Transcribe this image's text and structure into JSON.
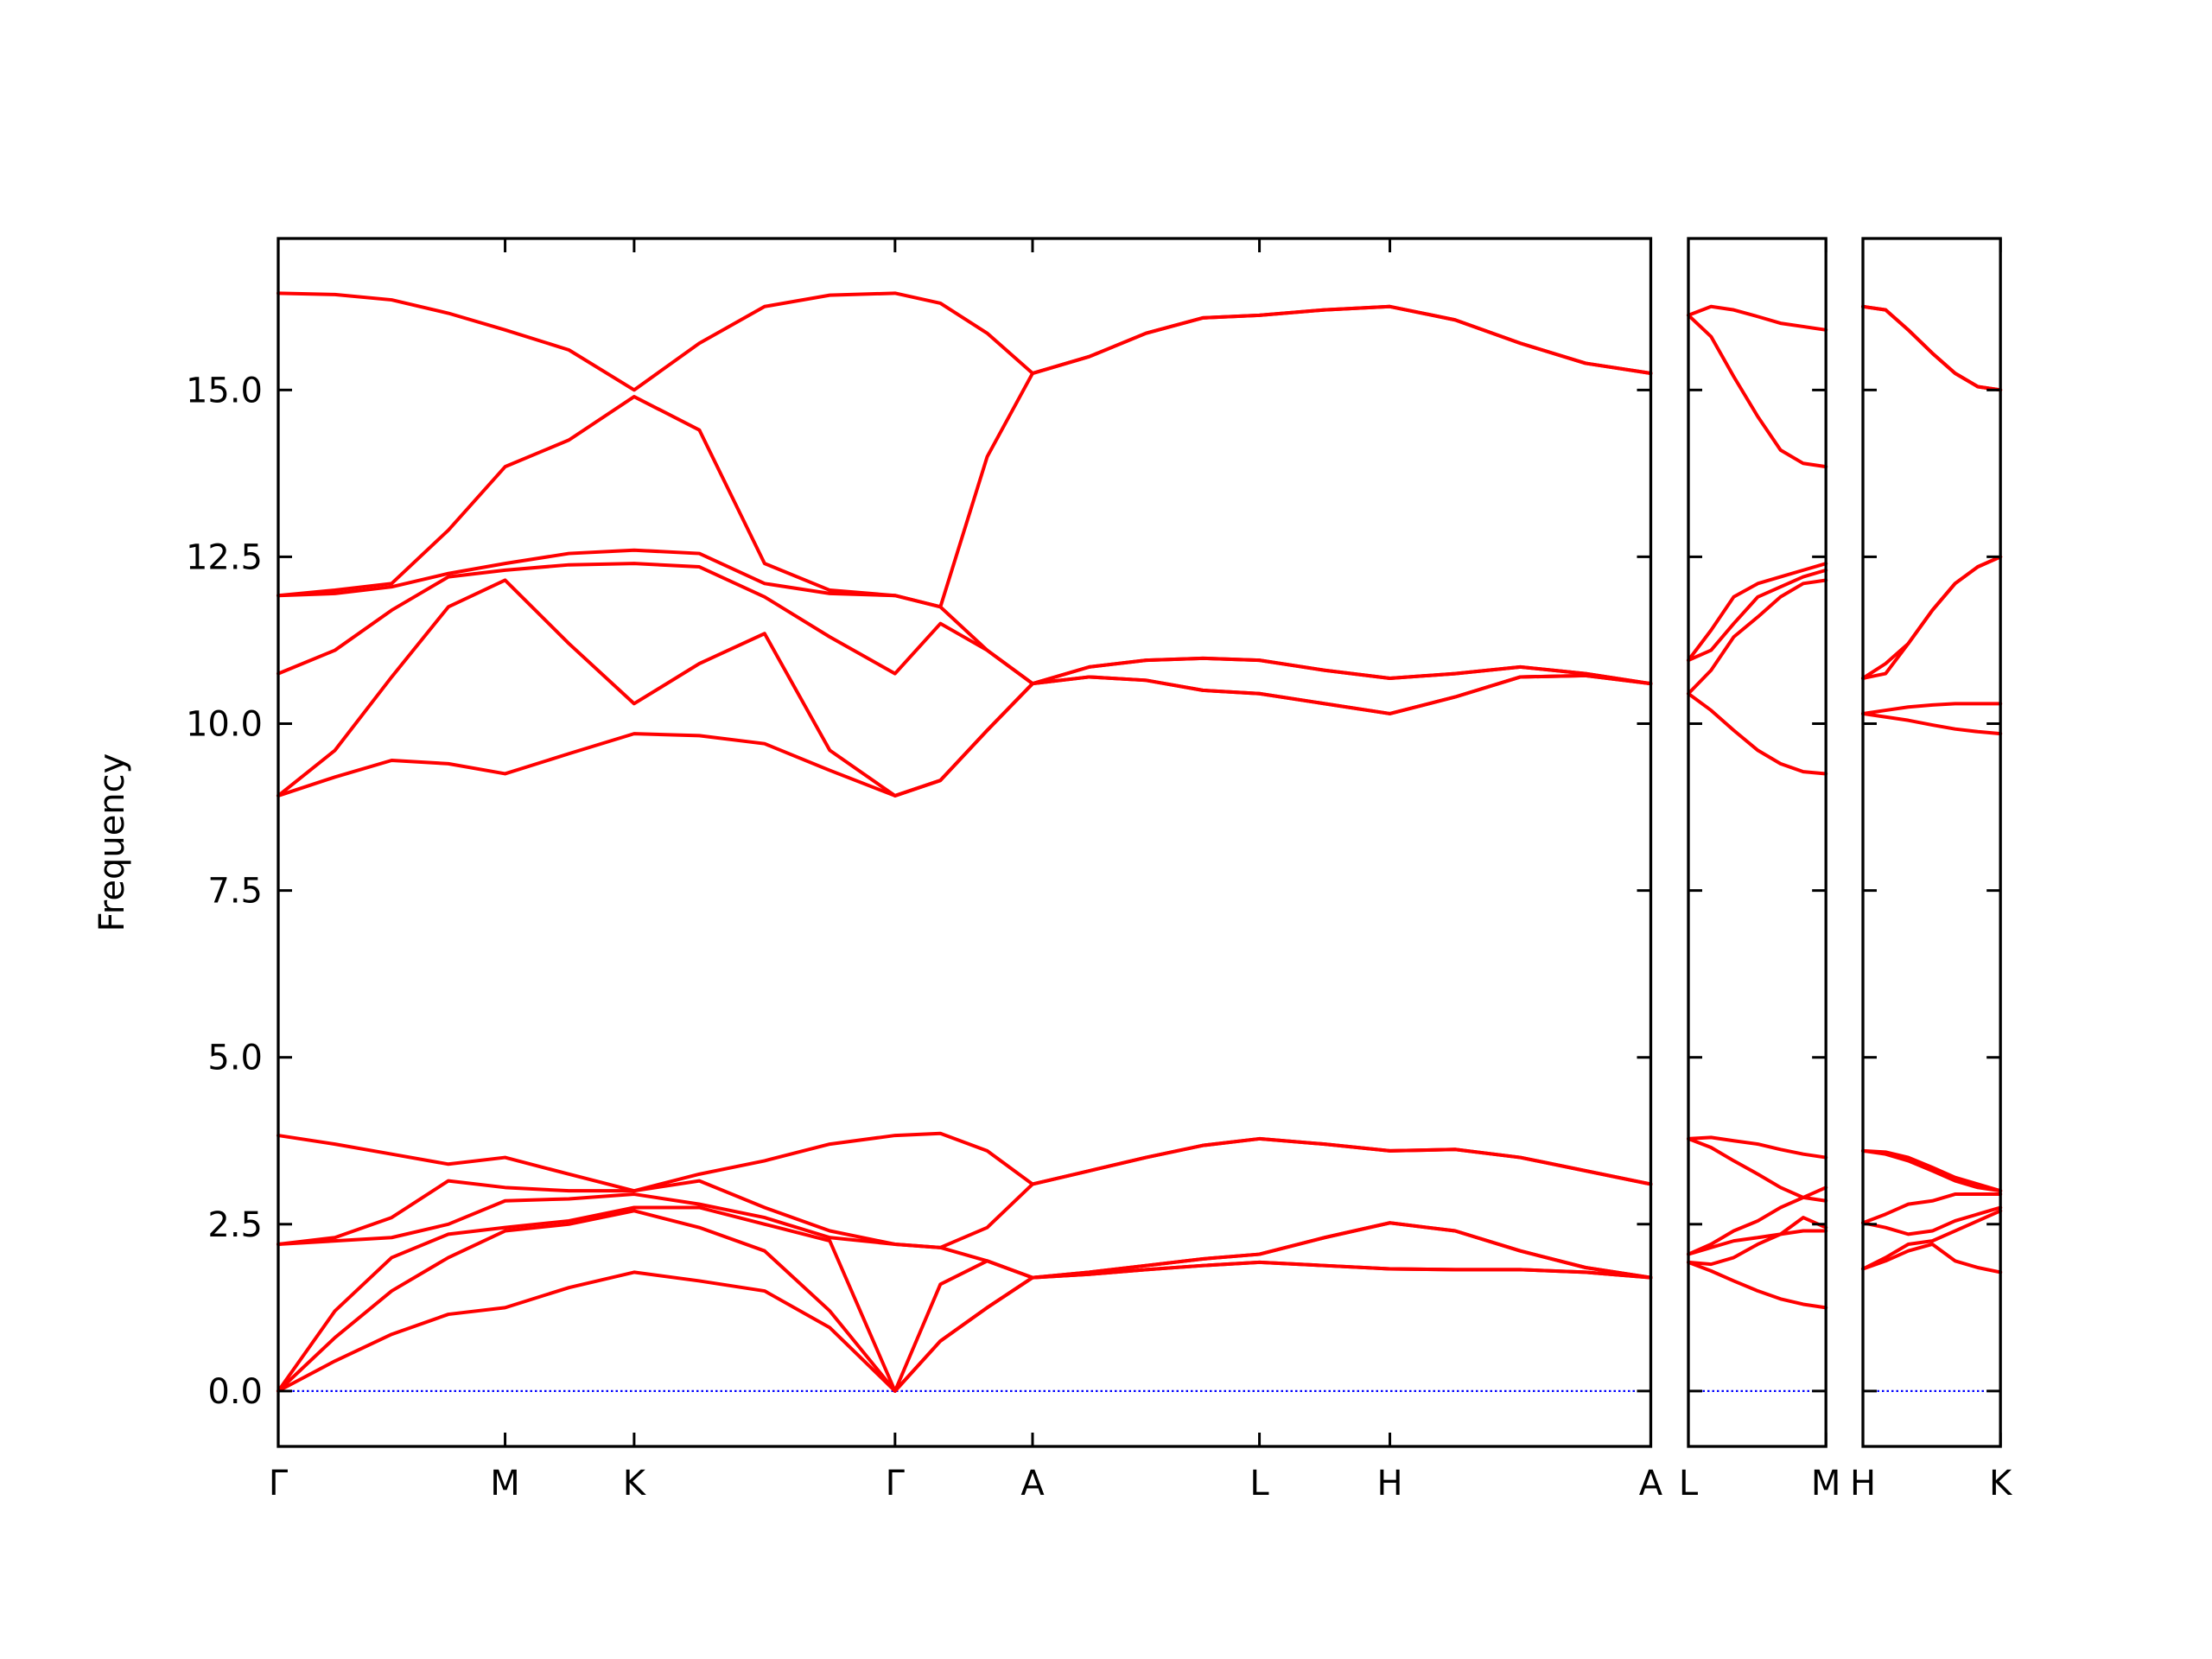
{
  "chart_data": [
    {
      "type": "line",
      "ylabel": "Frequency",
      "color": "#ff0000",
      "ylim": [
        -0.83,
        17.27
      ],
      "yticks": [
        {
          "value": 0,
          "label": "0.0"
        },
        2.5,
        {
          "value": 5,
          "label": "5.0"
        },
        7.5,
        {
          "value": 10,
          "label": "10.0"
        },
        12.5,
        {
          "value": 15,
          "label": "15.0"
        }
      ],
      "ytick_labels": true,
      "xlim": [
        0,
        9.68
      ],
      "xticks": [
        {
          "value": 0,
          "label": "Γ"
        },
        {
          "value": 1.6,
          "label": "M"
        },
        {
          "value": 2.51,
          "label": "K"
        },
        {
          "value": 4.35,
          "label": "Γ"
        },
        {
          "value": 5.32,
          "label": "A"
        },
        {
          "value": 6.92,
          "label": "L"
        },
        {
          "value": 7.84,
          "label": "H"
        },
        {
          "value": 9.68,
          "label": "A"
        }
      ],
      "reference_line": {
        "y": 0,
        "color": "#0000ff",
        "style": "dotted"
      },
      "x": [
        0,
        0.4,
        0.8,
        1.2,
        1.6,
        2.05,
        2.51,
        2.97,
        3.43,
        3.89,
        4.35,
        4.67,
        5.0,
        5.32,
        5.72,
        6.12,
        6.52,
        6.92,
        7.38,
        7.84,
        8.3,
        8.76,
        9.22,
        9.68
      ],
      "series": [
        {
          "values": [
            0,
            0.45,
            0.85,
            1.15,
            1.25,
            1.55,
            1.78,
            1.65,
            1.5,
            0.95,
            0,
            0.75,
            1.25,
            1.7,
            1.75,
            1.82,
            1.88,
            1.93,
            1.88,
            1.83,
            1.82,
            1.82,
            1.78,
            1.7
          ]
        },
        {
          "values": [
            0,
            0.8,
            1.5,
            2.0,
            2.4,
            2.5,
            2.7,
            2.45,
            2.1,
            1.2,
            0,
            0.75,
            1.25,
            1.7,
            1.75,
            1.82,
            1.88,
            1.93,
            1.88,
            1.83,
            1.82,
            1.82,
            1.78,
            1.7
          ]
        },
        {
          "values": [
            0,
            1.2,
            2.0,
            2.35,
            2.45,
            2.55,
            2.75,
            2.75,
            2.5,
            2.25,
            0,
            1.6,
            1.95,
            1.7,
            1.78,
            1.88,
            1.98,
            2.05,
            2.3,
            2.52,
            2.4,
            2.1,
            1.85,
            1.7
          ]
        },
        {
          "values": [
            2.2,
            2.25,
            2.3,
            2.5,
            2.85,
            2.88,
            2.95,
            2.8,
            2.6,
            2.3,
            2.2,
            2.15,
            1.95,
            1.7,
            1.78,
            1.88,
            1.98,
            2.05,
            2.3,
            2.52,
            2.4,
            2.1,
            1.85,
            1.7
          ]
        },
        {
          "values": [
            2.2,
            2.3,
            2.6,
            3.15,
            3.05,
            3.0,
            3.0,
            3.15,
            2.75,
            2.4,
            2.2,
            2.15,
            2.45,
            3.1,
            3.3,
            3.5,
            3.68,
            3.78,
            3.7,
            3.6,
            3.62,
            3.5,
            3.3,
            3.1
          ]
        },
        {
          "values": [
            3.83,
            3.7,
            3.55,
            3.4,
            3.5,
            3.25,
            3.0,
            3.25,
            3.45,
            3.7,
            3.83,
            3.86,
            3.6,
            3.1,
            3.3,
            3.5,
            3.68,
            3.78,
            3.7,
            3.6,
            3.62,
            3.5,
            3.3,
            3.1
          ]
        },
        {
          "values": [
            8.92,
            9.2,
            9.45,
            9.4,
            9.25,
            9.55,
            9.85,
            9.82,
            9.7,
            9.3,
            8.92,
            9.15,
            9.9,
            10.6,
            10.7,
            10.65,
            10.5,
            10.45,
            10.3,
            10.15,
            10.4,
            10.7,
            10.72,
            10.6
          ]
        },
        {
          "values": [
            8.92,
            9.6,
            10.7,
            11.75,
            12.15,
            11.2,
            10.3,
            10.9,
            11.35,
            9.6,
            8.92,
            9.15,
            9.9,
            10.6,
            10.7,
            10.65,
            10.5,
            10.45,
            10.3,
            10.15,
            10.4,
            10.7,
            10.72,
            10.6
          ]
        },
        {
          "values": [
            10.75,
            11.1,
            11.7,
            12.2,
            12.3,
            12.38,
            12.4,
            12.35,
            11.9,
            11.3,
            10.75,
            11.5,
            11.1,
            10.6,
            10.85,
            10.95,
            10.98,
            10.95,
            10.8,
            10.68,
            10.75,
            10.85,
            10.75,
            10.6
          ]
        },
        {
          "values": [
            11.92,
            11.95,
            12.05,
            12.25,
            12.4,
            12.55,
            12.6,
            12.55,
            12.1,
            11.95,
            11.92,
            11.75,
            11.1,
            10.6,
            10.85,
            10.95,
            10.98,
            10.95,
            10.8,
            10.68,
            10.75,
            10.85,
            10.75,
            10.6
          ]
        },
        {
          "values": [
            11.92,
            12.0,
            12.1,
            12.9,
            13.85,
            14.25,
            14.9,
            14.4,
            12.4,
            12.0,
            11.92,
            11.75,
            14.0,
            15.25,
            15.5,
            15.85,
            16.08,
            16.12,
            16.2,
            16.25,
            16.05,
            15.7,
            15.4,
            15.25
          ]
        },
        {
          "values": [
            16.45,
            16.43,
            16.35,
            16.15,
            15.9,
            15.6,
            15.0,
            15.7,
            16.25,
            16.42,
            16.45,
            16.3,
            15.85,
            15.25,
            15.5,
            15.85,
            16.08,
            16.12,
            16.2,
            16.25,
            16.05,
            15.7,
            15.4,
            15.25
          ]
        }
      ]
    },
    {
      "type": "line",
      "color": "#ff0000",
      "ylim": [
        -0.83,
        17.27
      ],
      "yticks": [
        0,
        2.5,
        5,
        7.5,
        10,
        12.5,
        15
      ],
      "ytick_labels": false,
      "xlim": [
        0,
        0.97
      ],
      "xticks": [
        {
          "value": 0,
          "label": "L"
        },
        {
          "value": 0.97,
          "label": "M"
        }
      ],
      "reference_line": {
        "y": 0,
        "color": "#0000ff",
        "style": "dotted"
      },
      "x": [
        0,
        0.16,
        0.32,
        0.49,
        0.65,
        0.81,
        0.97
      ],
      "series": [
        {
          "values": [
            1.93,
            1.8,
            1.65,
            1.5,
            1.38,
            1.3,
            1.25
          ]
        },
        {
          "values": [
            1.93,
            1.9,
            2.0,
            2.2,
            2.35,
            2.4,
            2.4
          ]
        },
        {
          "values": [
            2.05,
            2.15,
            2.25,
            2.3,
            2.35,
            2.6,
            2.45
          ]
        },
        {
          "values": [
            2.05,
            2.2,
            2.4,
            2.55,
            2.75,
            2.9,
            2.85
          ]
        },
        {
          "values": [
            3.78,
            3.65,
            3.45,
            3.25,
            3.05,
            2.9,
            3.05
          ]
        },
        {
          "values": [
            3.78,
            3.8,
            3.75,
            3.7,
            3.62,
            3.55,
            3.5
          ]
        },
        {
          "values": [
            10.45,
            10.2,
            9.9,
            9.6,
            9.4,
            9.28,
            9.25
          ]
        },
        {
          "values": [
            10.45,
            10.8,
            11.3,
            11.6,
            11.9,
            12.1,
            12.15
          ]
        },
        {
          "values": [
            10.95,
            11.1,
            11.5,
            11.9,
            12.05,
            12.2,
            12.3
          ]
        },
        {
          "values": [
            10.95,
            11.4,
            11.9,
            12.1,
            12.2,
            12.3,
            12.4
          ]
        },
        {
          "values": [
            16.12,
            15.8,
            15.2,
            14.6,
            14.1,
            13.9,
            13.85
          ]
        },
        {
          "values": [
            16.12,
            16.25,
            16.2,
            16.1,
            16.0,
            15.95,
            15.9
          ]
        }
      ]
    },
    {
      "type": "line",
      "color": "#ff0000",
      "ylim": [
        -0.83,
        17.27
      ],
      "yticks": [
        0,
        2.5,
        5,
        7.5,
        10,
        12.5,
        15
      ],
      "ytick_labels": false,
      "xlim": [
        0,
        0.97
      ],
      "xticks": [
        {
          "value": 0,
          "label": "H"
        },
        {
          "value": 0.97,
          "label": "K"
        }
      ],
      "reference_line": {
        "y": 0,
        "color": "#0000ff",
        "style": "dotted"
      },
      "x": [
        0,
        0.16,
        0.32,
        0.49,
        0.65,
        0.81,
        0.97
      ],
      "series": [
        {
          "values": [
            1.83,
            1.95,
            2.1,
            2.2,
            1.95,
            1.85,
            1.78
          ]
        },
        {
          "values": [
            1.83,
            2.0,
            2.2,
            2.25,
            2.4,
            2.55,
            2.7
          ]
        },
        {
          "values": [
            2.52,
            2.45,
            2.35,
            2.4,
            2.55,
            2.65,
            2.75
          ]
        },
        {
          "values": [
            2.52,
            2.65,
            2.8,
            2.85,
            2.95,
            2.95,
            2.95
          ]
        },
        {
          "values": [
            3.6,
            3.55,
            3.45,
            3.3,
            3.15,
            3.05,
            3.0
          ]
        },
        {
          "values": [
            3.6,
            3.58,
            3.5,
            3.35,
            3.2,
            3.1,
            3.0
          ]
        },
        {
          "values": [
            10.15,
            10.1,
            10.05,
            9.98,
            9.92,
            9.88,
            9.85
          ]
        },
        {
          "values": [
            10.15,
            10.2,
            10.25,
            10.28,
            10.3,
            10.3,
            10.3
          ]
        },
        {
          "values": [
            10.68,
            10.75,
            11.2,
            11.7,
            12.1,
            12.35,
            12.5
          ]
        },
        {
          "values": [
            10.68,
            10.9,
            11.2,
            11.7,
            12.1,
            12.35,
            12.5
          ]
        },
        {
          "values": [
            16.25,
            16.2,
            15.9,
            15.55,
            15.25,
            15.05,
            15.0
          ]
        },
        {
          "values": [
            16.25,
            16.2,
            15.9,
            15.55,
            15.25,
            15.05,
            15.0
          ]
        }
      ]
    }
  ]
}
